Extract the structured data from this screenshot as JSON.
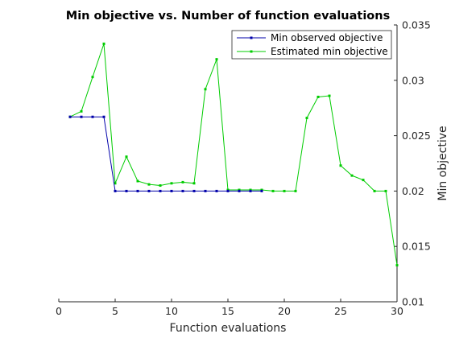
{
  "chart_data": {
    "type": "line",
    "title": "Min objective vs. Number of function evaluations",
    "xlabel": "Function evaluations",
    "ylabel": "Min objective",
    "xlim": [
      0,
      30
    ],
    "ylim": [
      0.01,
      0.035
    ],
    "x_ticks": [
      "0",
      "5",
      "10",
      "15",
      "20",
      "25",
      "30"
    ],
    "y_ticks": [
      "0.01",
      "0.015",
      "0.02",
      "0.025",
      "0.03",
      "0.035"
    ],
    "y_axis_side": "right",
    "grid": false,
    "legend_position": "top-right",
    "x": [
      1,
      2,
      3,
      4,
      5,
      6,
      7,
      8,
      9,
      10,
      11,
      12,
      13,
      14,
      15,
      16,
      17,
      18,
      19,
      20,
      21,
      22,
      23,
      24,
      25,
      26,
      27,
      28,
      29,
      30
    ],
    "series": [
      {
        "name": "Min observed objective",
        "color": "#0000aa",
        "x": [
          1,
          2,
          3,
          4,
          5,
          6,
          7,
          8,
          9,
          10,
          11,
          12,
          13,
          14,
          15,
          16,
          17,
          18
        ],
        "values": [
          0.0267,
          0.0267,
          0.0267,
          0.0267,
          0.02,
          0.02,
          0.02,
          0.02,
          0.02,
          0.02,
          0.02,
          0.02,
          0.02,
          0.02,
          0.02,
          0.02,
          0.02,
          0.02
        ]
      },
      {
        "name": "Estimated min objective",
        "color": "#00cc00",
        "x": [
          1,
          2,
          3,
          4,
          5,
          6,
          7,
          8,
          9,
          10,
          11,
          12,
          13,
          14,
          15,
          16,
          17,
          18,
          19,
          20,
          21,
          22,
          23,
          24,
          25,
          26,
          27,
          28,
          29,
          30
        ],
        "values": [
          0.0267,
          0.0272,
          0.0303,
          0.0333,
          0.0207,
          0.0231,
          0.0209,
          0.0206,
          0.0205,
          0.0207,
          0.0208,
          0.0207,
          0.0292,
          0.0319,
          0.0201,
          0.0201,
          0.0201,
          0.0201,
          0.02,
          0.02,
          0.02,
          0.0266,
          0.0285,
          0.0286,
          0.0223,
          0.0214,
          0.021,
          0.02,
          0.02,
          0.0133
        ]
      }
    ]
  }
}
